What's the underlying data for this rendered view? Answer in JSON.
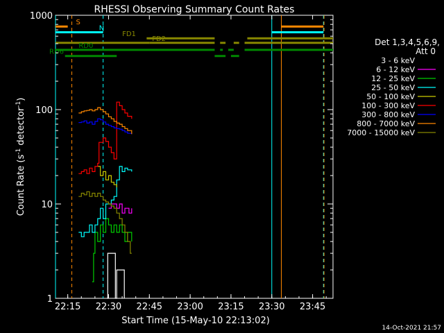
{
  "chart_data": {
    "type": "line",
    "title": "RHESSI Observing Summary Count Rates",
    "xlabel": "Start Time (15-May-10 22:13:02)",
    "ylabel_main": "Count Rate (s",
    "ylabel_sup1": "-1",
    "ylabel_mid": " detector",
    "ylabel_sup2": "-1",
    "ylabel_end": ")",
    "timestamp": "14-Oct-2021 21:57",
    "yscale": "log",
    "ylim": [
      1,
      1000
    ],
    "xlim_minutes_after_22_00": [
      10.5,
      112.5
    ],
    "x_ticks": [
      {
        "t": 15,
        "label": "22:15"
      },
      {
        "t": 30,
        "label": "22:30"
      },
      {
        "t": 45,
        "label": "22:45"
      },
      {
        "t": 60,
        "label": "23:00"
      },
      {
        "t": 75,
        "label": "23:15"
      },
      {
        "t": 90,
        "label": "23:30"
      },
      {
        "t": 105,
        "label": "23:45"
      }
    ],
    "y_ticks": [
      {
        "v": 1,
        "label": "1"
      },
      {
        "v": 10,
        "label": "10"
      },
      {
        "v": 100,
        "label": "100"
      },
      {
        "v": 1000,
        "label": "1000"
      }
    ],
    "legend_title_1": "Det 1,3,4,5,6,9,",
    "legend_title_2": "Att 0",
    "series": [
      {
        "name": "3 - 6 keV",
        "color": "#000000",
        "points": [
          [
            29.5,
            1
          ],
          [
            29.7,
            3
          ],
          [
            32,
            3
          ],
          [
            32.5,
            1
          ],
          [
            33,
            2
          ],
          [
            35.5,
            2
          ],
          [
            35.8,
            1
          ]
        ]
      },
      {
        "name": "6 - 12 keV",
        "color": "#ff00ff",
        "points": [
          [
            30,
            9
          ],
          [
            31,
            10
          ],
          [
            32,
            10
          ],
          [
            33,
            9
          ],
          [
            34,
            10
          ],
          [
            35,
            8
          ],
          [
            36,
            9
          ],
          [
            37.5,
            8
          ],
          [
            38.5,
            9
          ]
        ]
      },
      {
        "name": "12 - 25 keV",
        "color": "#00cc00",
        "points": [
          [
            24,
            1.5
          ],
          [
            24.5,
            3
          ],
          [
            25,
            5
          ],
          [
            26,
            4
          ],
          [
            27,
            6
          ],
          [
            28,
            5
          ],
          [
            29,
            7
          ],
          [
            30,
            6
          ],
          [
            31,
            5
          ],
          [
            32,
            6
          ],
          [
            33,
            5
          ],
          [
            34,
            6
          ],
          [
            35,
            5
          ],
          [
            36,
            4
          ],
          [
            37,
            5
          ],
          [
            38.5,
            4
          ]
        ]
      },
      {
        "name": "25 - 50 keV",
        "color": "#00ffff",
        "points": [
          [
            19,
            5
          ],
          [
            20,
            4.5
          ],
          [
            21,
            5
          ],
          [
            22,
            5
          ],
          [
            23,
            6
          ],
          [
            24,
            5
          ],
          [
            25,
            6
          ],
          [
            26,
            7
          ],
          [
            27,
            9
          ],
          [
            28,
            7
          ],
          [
            29,
            10
          ],
          [
            30,
            10
          ],
          [
            31,
            11
          ],
          [
            32,
            12
          ],
          [
            33,
            18
          ],
          [
            34,
            25
          ],
          [
            35,
            22
          ],
          [
            36,
            24
          ],
          [
            37,
            23
          ],
          [
            38.5,
            22
          ]
        ]
      },
      {
        "name": "50 - 100 keV",
        "color": "#cccc00",
        "points": [
          [
            26,
            25
          ],
          [
            27,
            20
          ],
          [
            28,
            22
          ],
          [
            29,
            18
          ],
          [
            30,
            20
          ],
          [
            31,
            17
          ],
          [
            32,
            16
          ],
          [
            33,
            15
          ]
        ]
      },
      {
        "name": "100 - 300 keV",
        "color": "#ff0000",
        "points": [
          [
            19,
            21
          ],
          [
            20,
            22
          ],
          [
            21,
            23
          ],
          [
            22,
            21
          ],
          [
            23,
            24
          ],
          [
            24,
            22
          ],
          [
            25,
            25
          ],
          [
            26,
            27
          ],
          [
            26.5,
            45
          ],
          [
            28,
            50
          ],
          [
            29,
            46
          ],
          [
            30,
            40
          ],
          [
            31,
            35
          ],
          [
            32,
            30
          ],
          [
            33,
            120
          ],
          [
            34,
            110
          ],
          [
            35,
            100
          ],
          [
            36,
            92
          ],
          [
            37,
            85
          ],
          [
            38.5,
            80
          ]
        ]
      },
      {
        "name": "300 - 800 keV",
        "color": "#0000ff",
        "points": [
          [
            19,
            73
          ],
          [
            20,
            74
          ],
          [
            21,
            76
          ],
          [
            22,
            72
          ],
          [
            23,
            74
          ],
          [
            24,
            70
          ],
          [
            25,
            75
          ],
          [
            26,
            80
          ],
          [
            27,
            78
          ],
          [
            28,
            74
          ],
          [
            29,
            70
          ],
          [
            30,
            68
          ],
          [
            31,
            66
          ],
          [
            32,
            64
          ],
          [
            33,
            63
          ],
          [
            34,
            62
          ],
          [
            35,
            60
          ],
          [
            36,
            58
          ],
          [
            37,
            56
          ],
          [
            38.5,
            55
          ]
        ]
      },
      {
        "name": "800 - 7000 keV",
        "color": "#ff8800",
        "points": [
          [
            19,
            92
          ],
          [
            20,
            95
          ],
          [
            21,
            97
          ],
          [
            22,
            98
          ],
          [
            23,
            100
          ],
          [
            24,
            97
          ],
          [
            25,
            100
          ],
          [
            26,
            105
          ],
          [
            27,
            100
          ],
          [
            28,
            95
          ],
          [
            29,
            90
          ],
          [
            30,
            84
          ],
          [
            31,
            80
          ],
          [
            32,
            75
          ],
          [
            33,
            72
          ],
          [
            34,
            70
          ],
          [
            35,
            66
          ],
          [
            36,
            63
          ],
          [
            37,
            60
          ],
          [
            38.5,
            55
          ]
        ]
      },
      {
        "name": "7000 - 15000 keV",
        "color": "#888800",
        "points": [
          [
            19,
            12
          ],
          [
            20,
            13
          ],
          [
            21,
            12.5
          ],
          [
            22,
            13.5
          ],
          [
            23,
            12
          ],
          [
            24,
            13
          ],
          [
            25,
            12
          ],
          [
            26,
            13
          ],
          [
            27,
            12
          ],
          [
            28,
            11
          ],
          [
            29,
            10.5
          ],
          [
            30,
            10
          ],
          [
            31,
            9.5
          ],
          [
            32,
            9
          ],
          [
            33,
            8
          ],
          [
            34,
            7
          ],
          [
            35,
            6
          ],
          [
            36,
            5
          ],
          [
            37,
            4
          ],
          [
            38,
            3
          ],
          [
            38.5,
            3
          ]
        ]
      }
    ],
    "flag_bars": [
      {
        "label": "S",
        "color": "#ff8800",
        "level": 760,
        "segments": [
          [
            10.5,
            15
          ]
        ]
      },
      {
        "label": "",
        "color": "#ff8800",
        "level": 760,
        "segments": [
          [
            93.5,
            109
          ]
        ]
      },
      {
        "label": "N",
        "color": "#00ffff",
        "level": 660,
        "segments": [
          [
            10.5,
            28
          ]
        ]
      },
      {
        "label": "",
        "color": "#00ffff",
        "level": 660,
        "segments": [
          [
            90,
            109
          ]
        ]
      },
      {
        "label": "FD1",
        "color": "#888800",
        "level": 570,
        "segments": [
          [
            44,
            69
          ],
          [
            81,
            112.5
          ]
        ]
      },
      {
        "label": "FD2",
        "color": "#888800",
        "level": 510,
        "segments": [
          [
            10.5,
            45
          ],
          [
            45,
            69
          ],
          [
            71,
            73
          ],
          [
            76,
            78
          ],
          [
            80,
            112.5
          ]
        ]
      },
      {
        "label": "RD0",
        "color": "#008800",
        "level": 430,
        "segments": [
          [
            10.5,
            69
          ],
          [
            71,
            72
          ],
          [
            74,
            76
          ],
          [
            80,
            112.5
          ]
        ]
      },
      {
        "label": "RD6",
        "color": "#008800",
        "level": 370,
        "segments": [
          [
            14,
            33
          ],
          [
            69,
            73
          ],
          [
            75,
            78
          ]
        ]
      }
    ],
    "vlines": [
      {
        "t": 10.5,
        "color": "#00ffff",
        "style": "solid"
      },
      {
        "t": 16.5,
        "color": "#ff8800",
        "style": "dashed"
      },
      {
        "t": 28,
        "color": "#00ffff",
        "style": "dashed"
      },
      {
        "t": 90,
        "color": "#00ffff",
        "style": "solid"
      },
      {
        "t": 93.5,
        "color": "#ff8800",
        "style": "solid"
      },
      {
        "t": 109,
        "color": "#00ffff",
        "style": "dashed"
      },
      {
        "t": 109.2,
        "color": "#ff8800",
        "style": "dashed"
      }
    ]
  }
}
